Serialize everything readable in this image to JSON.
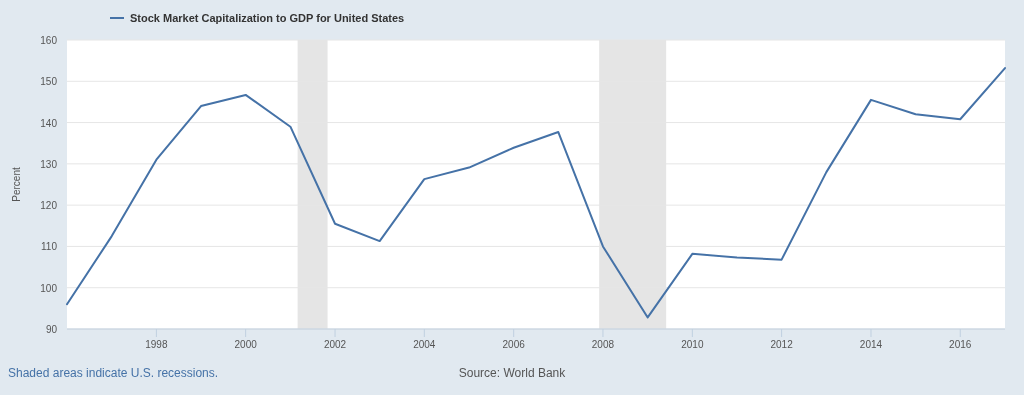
{
  "chart_data": {
    "type": "line",
    "ylabel": "Percent",
    "x": [
      "1996",
      "1997",
      "1998",
      "1999",
      "2000",
      "2001",
      "2002",
      "2003",
      "2004",
      "2005",
      "2006",
      "2007",
      "2008",
      "2009",
      "2010",
      "2011",
      "2012",
      "2013",
      "2014",
      "2015",
      "2016",
      "2017"
    ],
    "series": [
      {
        "name": "Stock Market Capitalization to GDP for United States",
        "color": "#4572a7",
        "values": [
          96,
          112.5,
          131,
          144,
          146.7,
          139,
          115.5,
          111.3,
          126.3,
          129.1,
          133.9,
          137.7,
          110,
          92.8,
          108.2,
          107.3,
          106.8,
          128,
          145.5,
          142,
          140.8,
          153.2
        ]
      }
    ],
    "xlim": [
      "1996",
      "2017"
    ],
    "xticks": [
      {
        "value": "1998",
        "label": "1998"
      },
      {
        "value": "2000",
        "label": "2000"
      },
      {
        "value": "2002",
        "label": "2002"
      },
      {
        "value": "2004",
        "label": "2004"
      },
      {
        "value": "2006",
        "label": "2006"
      },
      {
        "value": "2008",
        "label": "2008"
      },
      {
        "value": "2010",
        "label": "2010"
      },
      {
        "value": "2012",
        "label": "2012"
      },
      {
        "value": "2014",
        "label": "2014"
      },
      {
        "value": "2016",
        "label": "2016"
      }
    ],
    "ylim": [
      90,
      160
    ],
    "yticks": [
      90,
      100,
      110,
      120,
      130,
      140,
      150,
      160
    ],
    "bands": [
      {
        "axis": "x",
        "from": "2001-03",
        "to": "2001-11",
        "color": "#e5e5e5"
      },
      {
        "axis": "x",
        "from": "2007-12",
        "to": "2009-06",
        "color": "#e5e5e5"
      }
    ],
    "grid": "y",
    "legend": "top left",
    "line_style": "solid",
    "marker": "none",
    "annotations": [
      "Shaded areas indicate U.S. recessions.",
      "Source: World Bank"
    ]
  }
}
